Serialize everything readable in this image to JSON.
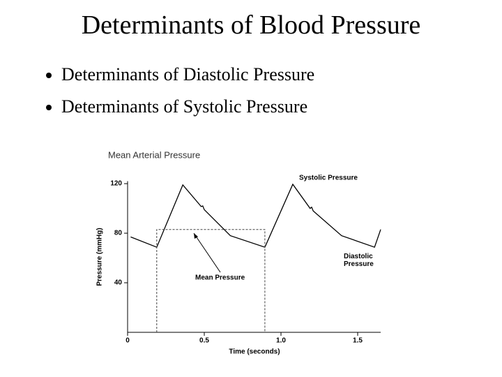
{
  "slide": {
    "title": "Determinants of Blood Pressure",
    "bullets": [
      "Determinants of Diastolic Pressure",
      "Determinants of Systolic Pressure"
    ]
  },
  "chart_data": {
    "type": "line",
    "title": "Mean Arterial Pressure",
    "x_label": "Time (seconds)",
    "y_label": "Pressure (mmHg)",
    "x": [
      0.02,
      0.19,
      0.36,
      0.48,
      0.49,
      0.5,
      0.67,
      0.895,
      1.077,
      1.19,
      1.2,
      1.21,
      1.395,
      1.61,
      1.65
    ],
    "values": [
      77,
      68.7,
      119,
      101.5,
      102,
      99,
      78,
      68.7,
      119.5,
      100,
      101,
      98,
      78,
      68.7,
      83
    ],
    "color": "#000000",
    "xlim": [
      0,
      1.65
    ],
    "ylim": [
      0,
      122
    ],
    "xticks": [
      0,
      0.5,
      {
        "value": 1,
        "label": "1.0"
      },
      1.5
    ],
    "yticks": [
      40,
      80,
      120
    ],
    "mean_pressure": {
      "value": 83,
      "x": [
        0.19,
        0.895
      ]
    },
    "annotations": [
      "Systolic Pressure",
      "Diastolic Pressure",
      "Mean Pressure"
    ]
  }
}
